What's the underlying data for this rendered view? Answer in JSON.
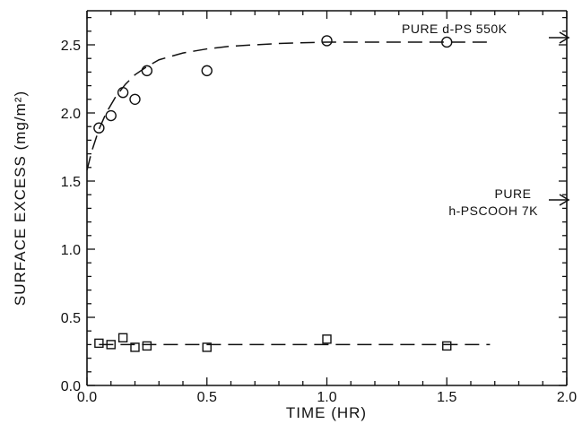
{
  "chart_data": {
    "type": "scatter",
    "xlabel": "TIME (HR)",
    "ylabel": "SURFACE EXCESS (mg/m²)",
    "xlim": [
      0.0,
      2.0
    ],
    "ylim": [
      0.0,
      2.75
    ],
    "x_ticks": [
      "0.0",
      "0.5",
      "1.0",
      "1.5",
      "2.0"
    ],
    "y_ticks": [
      "0.0",
      "0.5",
      "1.0",
      "1.5",
      "2.0",
      "2.5"
    ],
    "grid": false,
    "series": [
      {
        "marker": "circle",
        "x": [
          0.05,
          0.1,
          0.15,
          0.2,
          0.25,
          0.5,
          1.0,
          1.5
        ],
        "y": [
          1.89,
          1.98,
          2.15,
          2.1,
          2.31,
          2.31,
          2.53,
          2.52
        ]
      },
      {
        "marker": "square",
        "x": [
          0.05,
          0.1,
          0.15,
          0.2,
          0.25,
          0.5,
          1.0,
          1.5
        ],
        "y": [
          0.31,
          0.3,
          0.35,
          0.28,
          0.29,
          0.28,
          0.34,
          0.29
        ]
      }
    ],
    "fit_curves": [
      {
        "style": "dashed",
        "x": [
          0.0,
          0.02,
          0.05,
          0.08,
          0.12,
          0.16,
          0.2,
          0.25,
          0.3,
          0.4,
          0.5,
          0.6,
          0.8,
          1.0,
          1.2,
          1.4,
          1.68
        ],
        "y": [
          1.58,
          1.72,
          1.88,
          2.0,
          2.12,
          2.21,
          2.28,
          2.34,
          2.39,
          2.44,
          2.47,
          2.49,
          2.51,
          2.52,
          2.52,
          2.52,
          2.52
        ]
      },
      {
        "style": "dashed",
        "x": [
          0.05,
          1.68
        ],
        "y": [
          0.3,
          0.3
        ]
      }
    ],
    "annotations": [
      {
        "text": "PURE d-PS 550K",
        "value": 2.6
      },
      {
        "text_line1": "PURE",
        "text_line2": "h-PSCOOH 7K",
        "value": 1.43
      }
    ]
  }
}
